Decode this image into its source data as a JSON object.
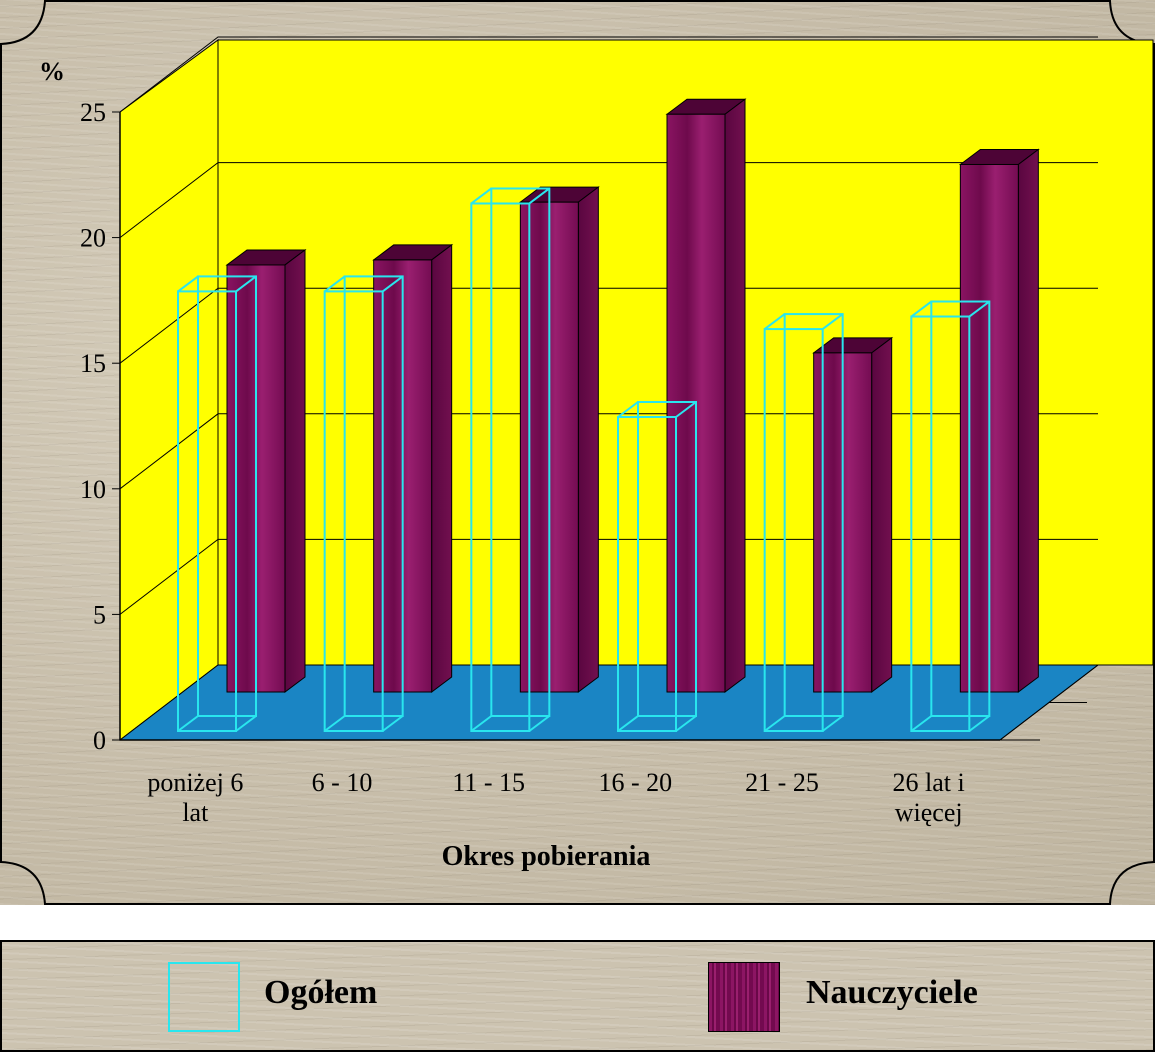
{
  "chart_data": {
    "type": "bar",
    "title": "",
    "ylabel": "%",
    "xlabel": "Okres pobierania",
    "ylim": [
      0,
      25
    ],
    "yticks": [
      0,
      5,
      10,
      15,
      20,
      25
    ],
    "grid": true,
    "legend_position": "bottom",
    "categories": [
      [
        "poniżej 6",
        "lat"
      ],
      [
        "6 - 10"
      ],
      [
        "11 - 15"
      ],
      [
        "16 - 20"
      ],
      [
        "21 - 25"
      ],
      [
        "26 lat i",
        "więcej"
      ]
    ],
    "series": [
      {
        "name": "Ogółem",
        "values": [
          17.5,
          17.5,
          21.0,
          12.5,
          16.0,
          16.5
        ],
        "color": "#29e6ee",
        "style": "wireframe"
      },
      {
        "name": "Nauczyciele",
        "values": [
          17.0,
          17.2,
          19.5,
          23.0,
          13.5,
          21.0
        ],
        "color": "#7b0c56",
        "style": "solid"
      }
    ],
    "colors": {
      "back_wall": "#ffff00",
      "floor": "#1a85c4",
      "grid": "#000000"
    }
  }
}
